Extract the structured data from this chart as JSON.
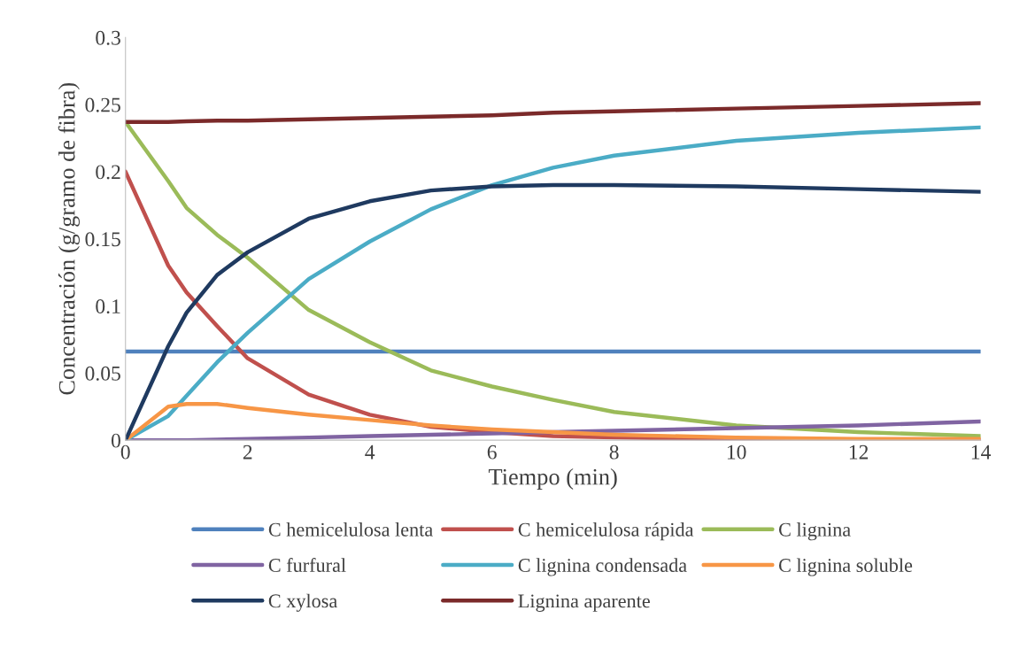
{
  "chart_data": {
    "type": "line",
    "xlabel": "Tiempo (min)",
    "ylabel": "Concentración (g/gramo de fibra)",
    "x": [
      0,
      0.7,
      1,
      1.5,
      2,
      3,
      4,
      5,
      6,
      7,
      8,
      10,
      12,
      14
    ],
    "xlim": [
      0,
      14
    ],
    "xticks": [
      0,
      2,
      4,
      6,
      8,
      10,
      12,
      14
    ],
    "ylim": [
      0,
      0.3
    ],
    "yticks": [
      0,
      0.05,
      0.1,
      0.15,
      0.2,
      0.25,
      0.3
    ],
    "grid": false,
    "legend": "bottom",
    "marker": "none",
    "line_style": "solid",
    "series": [
      {
        "name": "C hemicelulosa lenta",
        "color": "#4f81bd",
        "values": [
          0.066,
          0.066,
          0.066,
          0.066,
          0.066,
          0.066,
          0.066,
          0.066,
          0.066,
          0.066,
          0.066,
          0.066,
          0.066,
          0.066
        ]
      },
      {
        "name": "C hemicelulosa rápida",
        "color": "#c0504d",
        "values": [
          0.2,
          0.13,
          0.11,
          0.085,
          0.061,
          0.034,
          0.019,
          0.01,
          0.006,
          0.003,
          0.002,
          0.0005,
          0,
          0
        ]
      },
      {
        "name": "C lignina",
        "color": "#9bbb59",
        "values": [
          0.237,
          0.193,
          0.173,
          0.153,
          0.136,
          0.097,
          0.073,
          0.052,
          0.04,
          0.03,
          0.021,
          0.011,
          0.006,
          0.003
        ]
      },
      {
        "name": "C furfural",
        "color": "#8064a2",
        "values": [
          0,
          0,
          0,
          0.0005,
          0.001,
          0.002,
          0.003,
          0.004,
          0.005,
          0.006,
          0.007,
          0.009,
          0.011,
          0.014
        ]
      },
      {
        "name": "C lignina condensada",
        "color": "#4bacc6",
        "values": [
          0,
          0.018,
          0.033,
          0.058,
          0.08,
          0.12,
          0.148,
          0.172,
          0.19,
          0.203,
          0.212,
          0.223,
          0.229,
          0.233
        ]
      },
      {
        "name": "C lignina soluble",
        "color": "#f79646",
        "values": [
          0,
          0.025,
          0.027,
          0.027,
          0.024,
          0.019,
          0.015,
          0.011,
          0.008,
          0.006,
          0.004,
          0.002,
          0.001,
          0.001
        ]
      },
      {
        "name": "C xylosa",
        "color": "#1f3a60",
        "values": [
          0,
          0.07,
          0.095,
          0.123,
          0.14,
          0.165,
          0.178,
          0.186,
          0.189,
          0.19,
          0.19,
          0.189,
          0.187,
          0.185
        ]
      },
      {
        "name": "Lignina aparente",
        "color": "#7b2a2a",
        "values": [
          0.237,
          0.237,
          0.2375,
          0.238,
          0.238,
          0.239,
          0.24,
          0.241,
          0.242,
          0.244,
          0.245,
          0.247,
          0.249,
          0.251
        ]
      }
    ]
  }
}
